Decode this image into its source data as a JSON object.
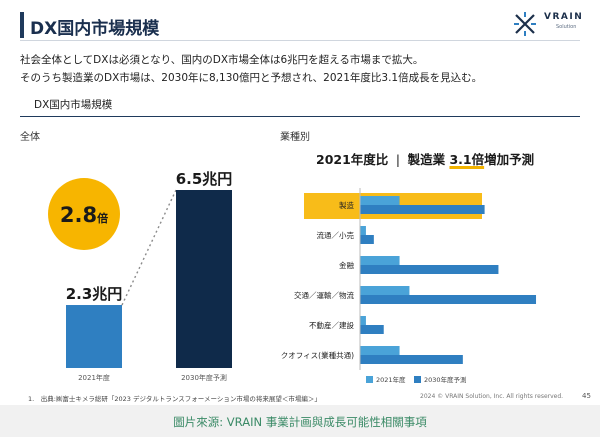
{
  "header": {
    "title": "DX国内市場規模",
    "logo_text": "VRAIN",
    "logo_sub": "Solution",
    "lead_1": "社会全体としてDXは必須となり、国内のDX市場全体は6兆円を超える市場まで拡大。",
    "lead_2": "そのうち製造業のDX市場は、2030年に8,130億円と予想され、2021年度比3.1倍成長を見込む。"
  },
  "section": {
    "label": "DX国内市場規模"
  },
  "left": {
    "label": "全体",
    "badge_value": "2.8",
    "badge_unit": "倍"
  },
  "right": {
    "label": "業種別",
    "head_prefix": "2021年度比",
    "head_sep": "|",
    "head_industry": "製造業",
    "head_value": "3.1倍",
    "head_suffix": "増加予測"
  },
  "footer": {
    "footnote": "1.　出典:㈱富士キメラ総研「2023 デジタルトランスフォーメーション市場の将来展望＜市場編＞」",
    "copyright": "2024 © VRAIN Solution, Inc. All rights reserved.",
    "page": "45"
  },
  "caption": "圖片來源: VRAIN 事業計画與成長可能性相關事項",
  "colors": {
    "navy": "#0f2a4a",
    "blue": "#2f7fc1",
    "light_blue": "#4aa3d8",
    "gold": "#f7b500",
    "highlight": "#f7b500"
  },
  "chart_data": [
    {
      "type": "bar",
      "categories": [
        "2021年度",
        "2030年度予測"
      ],
      "values": [
        2.3,
        6.5
      ],
      "value_labels": [
        "2.3兆円",
        "6.5兆円"
      ],
      "ylim": [
        0,
        6.5
      ],
      "annotation": "2.8倍"
    },
    {
      "type": "bar",
      "orientation": "horizontal",
      "categories": [
        "製造",
        "流通／小売",
        "金融",
        "交通／運輸／物流",
        "不動産／建設",
        "バックオフィス(業種共通)"
      ],
      "series": [
        {
          "name": "2021年度",
          "values": [
            20,
            3,
            20,
            25,
            3,
            20
          ]
        },
        {
          "name": "2030年度予測",
          "values": [
            63,
            7,
            70,
            89,
            12,
            52
          ]
        }
      ],
      "highlight": "製造",
      "legend_position": "bottom"
    }
  ]
}
